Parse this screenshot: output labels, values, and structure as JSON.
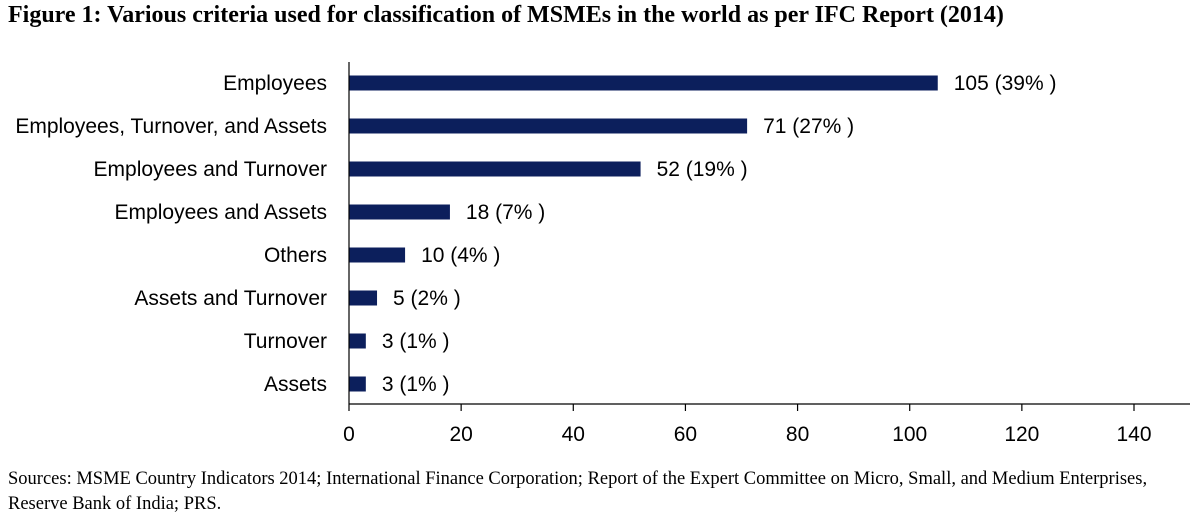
{
  "figure": {
    "title": "Figure 1: Various criteria used for classification of MSMEs in the world as per IFC Report (2014)",
    "sources": "Sources: MSME Country Indicators 2014; International Finance Corporation; Report of the Expert Committee on Micro, Small, and Medium Enterprises, Reserve Bank of India; PRS."
  },
  "colors": {
    "bar": "#0c1f5c",
    "axis": "#000000"
  },
  "chart_data": {
    "type": "bar",
    "orientation": "horizontal",
    "title": "Figure 1: Various criteria used for classification of MSMEs in the world as per IFC Report (2014)",
    "categories": [
      "Employees",
      "Employees, Turnover, and Assets",
      "Employees and Turnover",
      "Employees and Assets",
      "Others",
      "Assets and Turnover",
      "Turnover",
      "Assets"
    ],
    "values": [
      105,
      71,
      52,
      18,
      10,
      5,
      3,
      3
    ],
    "data_labels": [
      "105 (39% )",
      "71 (27% )",
      "52 (19% )",
      "18 (7% )",
      "10 (4% )",
      "5 (2% )",
      "3 (1% )",
      "3 (1% )"
    ],
    "xlim": [
      0,
      140
    ],
    "xticks": [
      0,
      20,
      40,
      60,
      80,
      100,
      120,
      140
    ],
    "xlabel": "",
    "ylabel": "",
    "grid": false,
    "legend": "none"
  }
}
